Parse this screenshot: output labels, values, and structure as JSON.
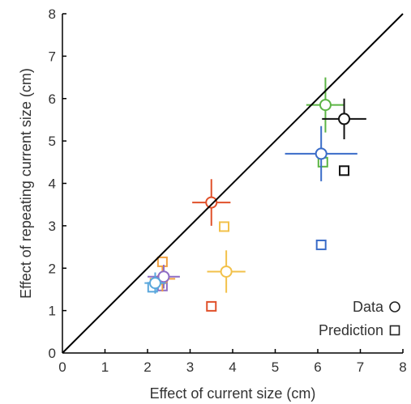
{
  "chart_data": {
    "type": "scatter",
    "title": "",
    "xlabel": "Effect of current size (cm)",
    "ylabel": "Effect of repeating current size (cm)",
    "xlim": [
      0,
      8
    ],
    "ylim": [
      0,
      8
    ],
    "xticks": [
      "0",
      "1",
      "2",
      "3",
      "4",
      "5",
      "6",
      "7",
      "8"
    ],
    "yticks": [
      "0",
      "1",
      "2",
      "3",
      "4",
      "5",
      "6",
      "7",
      "8"
    ],
    "grid": false,
    "reference_line": {
      "from": [
        0,
        0
      ],
      "to": [
        8,
        8
      ],
      "color": "#000000"
    },
    "legend": {
      "placement": "bottom-right",
      "entries": [
        {
          "label": "Data",
          "marker": "circle"
        },
        {
          "label": "Prediction",
          "marker": "square"
        }
      ]
    },
    "series": [
      {
        "color": "#e0502a",
        "data": {
          "x": 3.5,
          "y": 3.55,
          "xerr": 0.45,
          "yerr": 0.55
        },
        "prediction": {
          "x": 3.5,
          "y": 1.1
        }
      },
      {
        "color": "#f2c14a",
        "data": {
          "x": 3.85,
          "y": 1.92,
          "xerr": 0.45,
          "yerr": 0.5
        },
        "prediction": {
          "x": 3.8,
          "y": 2.98
        }
      },
      {
        "color": "#f0a040",
        "data": {
          "x": 2.35,
          "y": 1.75,
          "xerr": 0.3,
          "yerr": 0.3
        },
        "prediction": {
          "x": 2.35,
          "y": 2.15
        }
      },
      {
        "color": "#8e6cc4",
        "data": {
          "x": 2.38,
          "y": 1.8,
          "xerr": 0.38,
          "yerr": 0.28
        },
        "prediction": {
          "x": 2.35,
          "y": 1.58
        }
      },
      {
        "color": "#5aa7dc",
        "data": {
          "x": 2.18,
          "y": 1.65,
          "xerr": 0.25,
          "yerr": 0.25
        },
        "prediction": {
          "x": 2.12,
          "y": 1.55
        }
      },
      {
        "color": "#3a6cc8",
        "data": {
          "x": 6.08,
          "y": 4.7,
          "xerr": 0.85,
          "yerr": 0.65
        },
        "prediction": {
          "x": 6.08,
          "y": 2.55
        }
      },
      {
        "color": "#5cb545",
        "data": {
          "x": 6.18,
          "y": 5.85,
          "xerr": 0.45,
          "yerr": 0.65
        },
        "prediction": {
          "x": 6.12,
          "y": 4.5
        }
      },
      {
        "color": "#111111",
        "data": {
          "x": 6.62,
          "y": 5.52,
          "xerr": 0.52,
          "yerr": 0.48
        },
        "prediction": {
          "x": 6.62,
          "y": 4.3
        }
      }
    ]
  }
}
